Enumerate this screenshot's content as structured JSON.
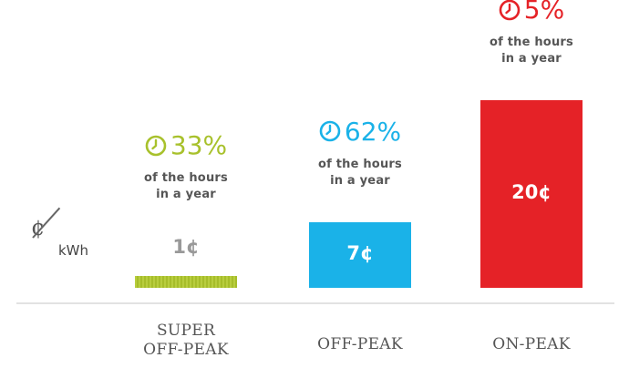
{
  "chart_data": {
    "type": "bar",
    "unit": {
      "symbol": "¢",
      "per": "kWh"
    },
    "colors": {
      "super_off_peak": "#a8c12c",
      "off_peak": "#1ab2e8",
      "on_peak": "#e52227",
      "muted": "#999999",
      "text": "#555555"
    },
    "categories": [
      {
        "name_lines": [
          "SUPER",
          "OFF-PEAK"
        ],
        "value": 1,
        "value_label": "1¢",
        "share": 33,
        "share_label": "33%",
        "hours_lines": [
          "of the hours",
          "in a year"
        ],
        "color_key": "super_off_peak"
      },
      {
        "name_lines": [
          "OFF-PEAK"
        ],
        "value": 7,
        "value_label": "7¢",
        "share": 62,
        "share_label": "62%",
        "hours_lines": [
          "of the hours",
          "in a year"
        ],
        "color_key": "off_peak"
      },
      {
        "name_lines": [
          "ON-PEAK"
        ],
        "value": 20,
        "value_label": "20¢",
        "share": 5,
        "share_label": "5%",
        "hours_lines": [
          "of the hours",
          "in a year"
        ],
        "color_key": "on_peak"
      }
    ],
    "icon": "clock-icon"
  }
}
